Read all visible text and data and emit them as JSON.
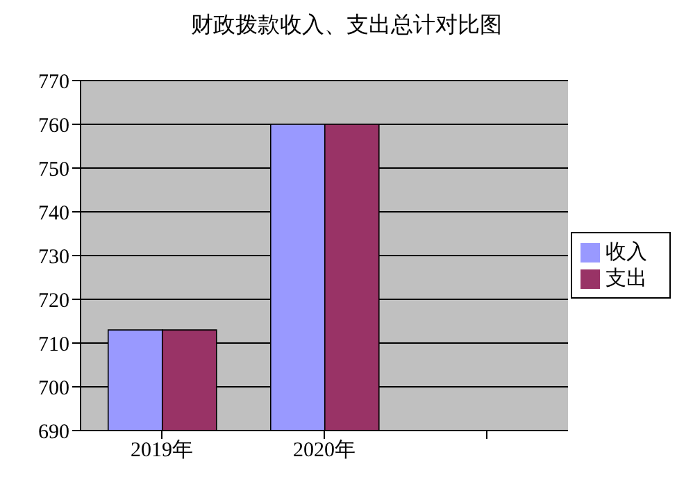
{
  "chart_data": {
    "type": "bar",
    "title": "财政拨款收入、支出总计对比图",
    "categories": [
      "2019年",
      "2020年",
      null
    ],
    "series": [
      {
        "name": "收入",
        "color": "#9999ff",
        "values": [
          713,
          760,
          null
        ]
      },
      {
        "name": "支出",
        "color": "#993366",
        "values": [
          713,
          760,
          null
        ]
      }
    ],
    "ylim": [
      690,
      770
    ],
    "yticks": [
      690,
      700,
      710,
      720,
      730,
      740,
      750,
      760,
      770
    ],
    "grid": "y",
    "legend": "right"
  }
}
